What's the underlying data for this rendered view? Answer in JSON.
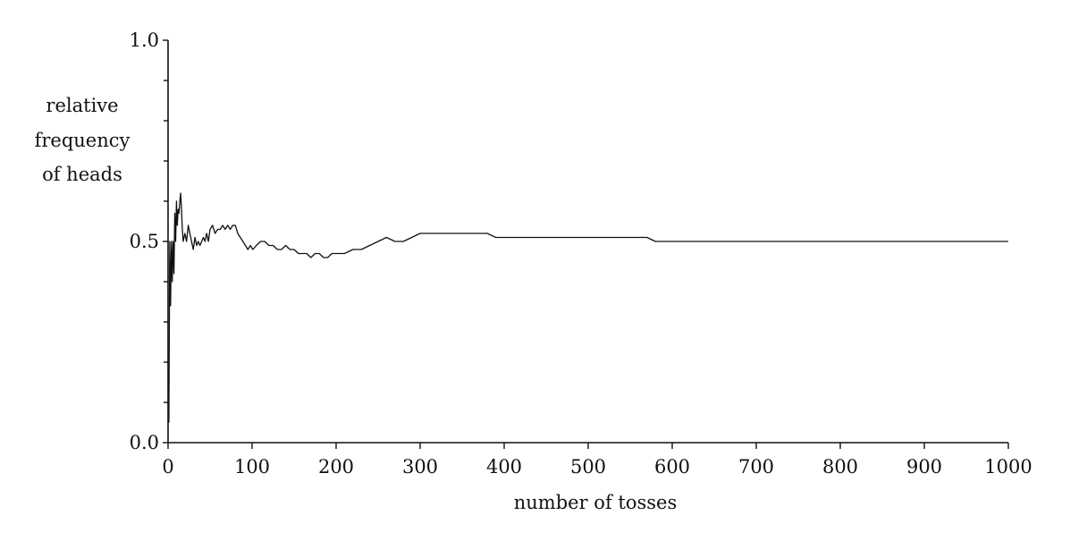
{
  "chart_data": {
    "type": "line",
    "title": "",
    "xlabel": "number of tosses",
    "ylabel_lines": [
      "relative",
      "frequency",
      "of heads"
    ],
    "xlim": [
      0,
      1000
    ],
    "ylim": [
      0.0,
      1.0
    ],
    "grid": false,
    "legend": "none",
    "line_color": "#111111",
    "x_ticks": [
      0,
      100,
      200,
      300,
      400,
      500,
      600,
      700,
      800,
      900,
      1000
    ],
    "x_tick_labels": [
      "0",
      "100",
      "200",
      "300",
      "400",
      "500",
      "600",
      "700",
      "800",
      "900",
      "1000"
    ],
    "y_labeled_ticks": [
      0.0,
      0.5,
      1.0
    ],
    "y_tick_labels": [
      "0.0",
      "0.5",
      "1.0"
    ],
    "y_minor_ticks": [
      0.1,
      0.2,
      0.3,
      0.4,
      0.6,
      0.7,
      0.8,
      0.9
    ],
    "series": [
      {
        "x": [
          1,
          2,
          3,
          4,
          5,
          6,
          7,
          8,
          9,
          10,
          11,
          12,
          13,
          14,
          15,
          16,
          17,
          18,
          20,
          22,
          24,
          26,
          28,
          30,
          32,
          34,
          36,
          38,
          40,
          42,
          44,
          46,
          48,
          50,
          53,
          56,
          59,
          62,
          65,
          68,
          71,
          74,
          77,
          80,
          83,
          86,
          89,
          92,
          95,
          98,
          101,
          105,
          110,
          115,
          120,
          125,
          130,
          135,
          140,
          145,
          150,
          155,
          160,
          165,
          170,
          175,
          180,
          185,
          190,
          195,
          200,
          210,
          220,
          230,
          240,
          250,
          260,
          270,
          280,
          290,
          300,
          310,
          320,
          330,
          340,
          350,
          360,
          370,
          380,
          390,
          400,
          410,
          420,
          430,
          440,
          450,
          460,
          470,
          480,
          490,
          500,
          510,
          520,
          530,
          540,
          550,
          560,
          570,
          580,
          590,
          600,
          620,
          640,
          660,
          680,
          700,
          720,
          740,
          760,
          780,
          800,
          820,
          840,
          860,
          880,
          900,
          920,
          940,
          960,
          980,
          1000
        ],
        "values": [
          0.05,
          0.5,
          0.34,
          0.5,
          0.4,
          0.5,
          0.42,
          0.57,
          0.5,
          0.6,
          0.54,
          0.58,
          0.57,
          0.6,
          0.62,
          0.58,
          0.53,
          0.5,
          0.52,
          0.5,
          0.54,
          0.52,
          0.5,
          0.48,
          0.51,
          0.49,
          0.5,
          0.49,
          0.5,
          0.51,
          0.5,
          0.52,
          0.5,
          0.53,
          0.54,
          0.52,
          0.53,
          0.53,
          0.54,
          0.53,
          0.54,
          0.53,
          0.54,
          0.54,
          0.52,
          0.51,
          0.5,
          0.49,
          0.48,
          0.49,
          0.48,
          0.49,
          0.5,
          0.5,
          0.49,
          0.49,
          0.48,
          0.48,
          0.49,
          0.48,
          0.48,
          0.47,
          0.47,
          0.47,
          0.46,
          0.47,
          0.47,
          0.46,
          0.46,
          0.47,
          0.47,
          0.47,
          0.48,
          0.48,
          0.49,
          0.5,
          0.51,
          0.5,
          0.5,
          0.51,
          0.52,
          0.52,
          0.52,
          0.52,
          0.52,
          0.52,
          0.52,
          0.52,
          0.52,
          0.51,
          0.51,
          0.51,
          0.51,
          0.51,
          0.51,
          0.51,
          0.51,
          0.51,
          0.51,
          0.51,
          0.51,
          0.51,
          0.51,
          0.51,
          0.51,
          0.51,
          0.51,
          0.51,
          0.5,
          0.5,
          0.5,
          0.5,
          0.5,
          0.5,
          0.5,
          0.5,
          0.5,
          0.5,
          0.5,
          0.5,
          0.5,
          0.5,
          0.5,
          0.5,
          0.5,
          0.5,
          0.5,
          0.5,
          0.5,
          0.5,
          0.5
        ]
      }
    ]
  }
}
